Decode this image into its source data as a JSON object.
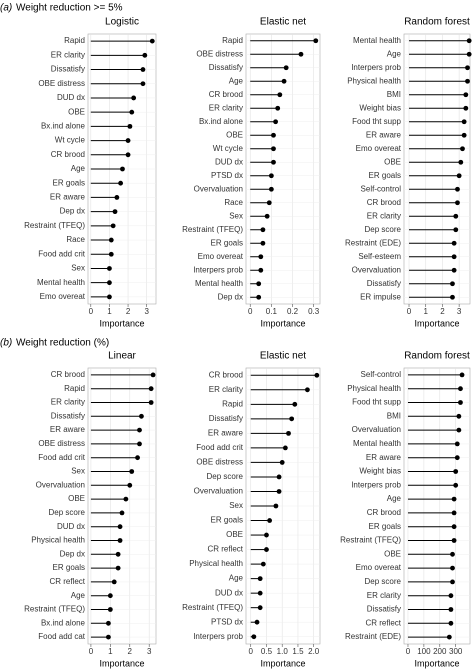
{
  "panels": [
    {
      "label": "(a)",
      "title": "Weight reduction >= 5%"
    },
    {
      "label": "(b)",
      "title": "Weight reduction (%)"
    }
  ],
  "chart_data": [
    {
      "type": "lollipop",
      "title": "Logistic",
      "xlabel": "Importance",
      "xlim": [
        -0.15,
        3.5
      ],
      "xticks": [
        0,
        1,
        2,
        3
      ],
      "grid": true,
      "color": "#000000",
      "categories": [
        "Rapid",
        "ER clarity",
        "Dissatisfy",
        "OBE distress",
        "DUD dx",
        "OBE",
        "Bx.ind alone",
        "Wt cycle",
        "CR brood",
        "Age",
        "ER goals",
        "ER aware",
        "Dep dx",
        "Restraint (TFEQ)",
        "Race",
        "Food add crit",
        "Sex",
        "Mental health",
        "Emo overeat"
      ],
      "values": [
        3.3,
        2.9,
        2.8,
        2.8,
        2.3,
        2.2,
        2.1,
        2.0,
        2.0,
        1.7,
        1.6,
        1.4,
        1.3,
        1.2,
        1.1,
        1.1,
        1.0,
        1.0,
        1.0
      ]
    },
    {
      "type": "lollipop",
      "title": "Elastic net",
      "xlabel": "Importance",
      "xlim": [
        -0.02,
        0.33
      ],
      "xticks": [
        0,
        0.1,
        0.2,
        0.3
      ],
      "grid": true,
      "color": "#000000",
      "categories": [
        "Rapid",
        "OBE distress",
        "Dissatisfy",
        "Age",
        "CR brood",
        "ER clarity",
        "Bx.ind alone",
        "OBE",
        "Wt cycle",
        "DUD dx",
        "PTSD dx",
        "Overvaluation",
        "Race",
        "Sex",
        "Restraint (TFEQ)",
        "ER goals",
        "Emo overeat",
        "Interpers prob",
        "Mental health",
        "Dep dx"
      ],
      "values": [
        0.31,
        0.24,
        0.17,
        0.16,
        0.14,
        0.13,
        0.12,
        0.11,
        0.11,
        0.11,
        0.1,
        0.1,
        0.09,
        0.08,
        0.06,
        0.06,
        0.05,
        0.05,
        0.04,
        0.04
      ]
    },
    {
      "type": "lollipop",
      "title": "Random forest",
      "xlabel": "Importance",
      "xlim": [
        -0.3,
        3.65
      ],
      "xticks": [
        0,
        1,
        2,
        3
      ],
      "grid": true,
      "color": "#000000",
      "categories": [
        "Mental health",
        "Age",
        "Interpers prob",
        "Physical health",
        "BMI",
        "Weight bias",
        "Food tht supp",
        "ER aware",
        "Emo overeat",
        "OBE",
        "ER goals",
        "Self-control",
        "CR brood",
        "ER clarity",
        "Dep score",
        "Restraint (EDE)",
        "Self-esteem",
        "Overvaluation",
        "Dissatisfy",
        "ER impulse"
      ],
      "values": [
        3.6,
        3.6,
        3.5,
        3.5,
        3.4,
        3.4,
        3.3,
        3.3,
        3.2,
        3.1,
        3.0,
        2.9,
        2.9,
        2.8,
        2.8,
        2.7,
        2.7,
        2.7,
        2.6,
        2.6
      ]
    },
    {
      "type": "lollipop",
      "title": "Linear",
      "xlabel": "Importance",
      "xlim": [
        -0.15,
        3.35
      ],
      "xticks": [
        0,
        1,
        2,
        3
      ],
      "grid": true,
      "color": "#000000",
      "categories": [
        "CR brood",
        "Rapid",
        "ER clarity",
        "Dissatisfy",
        "ER aware",
        "OBE distress",
        "Food add crit",
        "Sex",
        "Overvaluation",
        "OBE",
        "Dep score",
        "DUD dx",
        "Physical health",
        "Dep dx",
        "ER goals",
        "CR reflect",
        "Age",
        "Restraint (TFEQ)",
        "Bx.ind alone",
        "Food add cat"
      ],
      "values": [
        3.2,
        3.1,
        3.1,
        2.6,
        2.5,
        2.5,
        2.4,
        2.1,
        2.0,
        1.8,
        1.6,
        1.5,
        1.5,
        1.4,
        1.4,
        1.2,
        1.0,
        1.0,
        0.9,
        0.9
      ]
    },
    {
      "type": "lollipop",
      "title": "Elastic net",
      "xlabel": "Importance",
      "xlim": [
        -0.15,
        2.2
      ],
      "xticks": [
        0,
        0.5,
        {
          "value": 1,
          "label": "1.0"
        },
        1.5,
        {
          "value": 2,
          "label": "2.0"
        }
      ],
      "grid": true,
      "color": "#000000",
      "categories": [
        "CR brood",
        "ER clarity",
        "Rapid",
        "Dissatisfy",
        "ER aware",
        "Food add crit",
        "OBE distress",
        "Dep score",
        "Overvaluation",
        "Sex",
        "ER goals",
        "OBE",
        "CR reflect",
        "Physical health",
        "Age",
        "DUD dx",
        "Restraint (TFEQ)",
        "PTSD dx",
        "Interpers prob"
      ],
      "values": [
        2.1,
        1.8,
        1.4,
        1.3,
        1.2,
        1.1,
        1.0,
        0.9,
        0.9,
        0.8,
        0.6,
        0.5,
        0.5,
        0.4,
        0.3,
        0.3,
        0.3,
        0.2,
        0.1
      ]
    },
    {
      "type": "lollipop",
      "title": "Random forest",
      "xlabel": "Importance",
      "xlim": [
        -25,
        390
      ],
      "xticks": [
        0,
        100,
        200,
        300
      ],
      "grid": true,
      "color": "#000000",
      "categories": [
        "Self-control",
        "Physical health",
        "Food tht supp",
        "BMI",
        "Overvaluation",
        "Mental health",
        "ER aware",
        "Weight bias",
        "Interpers prob",
        "Age",
        "CR brood",
        "ER goals",
        "Restraint (TFEQ)",
        "OBE",
        "Emo overeat",
        "Dep score",
        "ER clarity",
        "Dissatisfy",
        "CR reflect",
        "Restraint (EDE)"
      ],
      "values": [
        340,
        330,
        330,
        320,
        320,
        310,
        310,
        300,
        300,
        290,
        290,
        290,
        290,
        280,
        280,
        280,
        270,
        270,
        270,
        260
      ]
    }
  ]
}
